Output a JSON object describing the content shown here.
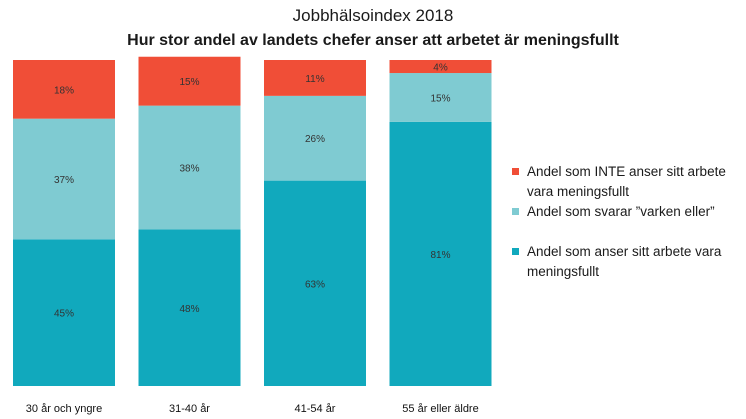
{
  "chart_data": {
    "type": "bar",
    "stacked": true,
    "title": "Jobbhälsoindex 2018",
    "subtitle": "Hur stor andel av landets chefer anser att arbetet är meningsfullt",
    "categories": [
      "30 år och yngre",
      "31-40 år",
      "41-54 år",
      "55 år eller äldre"
    ],
    "series": [
      {
        "name": "Andel som anser sitt arbete vara meningsfullt",
        "color": "#11a9bd",
        "values": [
          45,
          48,
          63,
          81
        ],
        "labels": [
          "45%",
          "48%",
          "63%",
          "81%"
        ]
      },
      {
        "name": "Andel som svarar ”varken eller”",
        "color": "#7fcbd2",
        "values": [
          37,
          38,
          26,
          15
        ],
        "labels": [
          "37%",
          "38%",
          "26%",
          "15%"
        ]
      },
      {
        "name": "Andel som INTE anser sitt arbete vara meningsfullt",
        "color": "#f04e37",
        "values": [
          18,
          15,
          11,
          4
        ],
        "labels": [
          "18%",
          "15%",
          "11%",
          "4%"
        ]
      }
    ],
    "ylim": [
      0,
      100
    ],
    "grid": false,
    "legend_position": "right"
  },
  "legend": [
    {
      "text": "Andel som INTE anser sitt arbete vara meningsfullt",
      "color": "#f04e37"
    },
    {
      "text": "Andel som svarar ”varken eller”",
      "color": "#7fcbd2"
    },
    {
      "text": "Andel som anser sitt arbete vara meningsfullt",
      "color": "#11a9bd"
    }
  ]
}
